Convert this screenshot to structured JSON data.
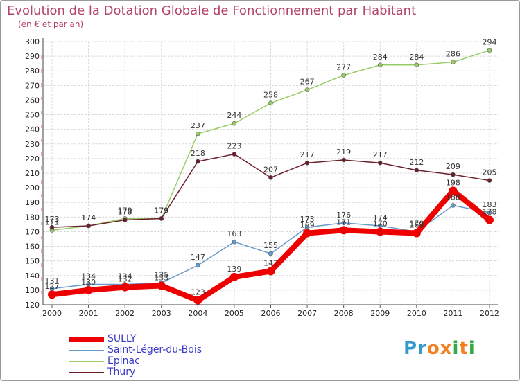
{
  "chart_data": {
    "type": "line",
    "title": "Evolution de la Dotation Globale de Fonctionnement par Habitant",
    "subtitle": "(en € et par an)",
    "xlabel": "",
    "ylabel": "",
    "categories": [
      "2000",
      "2001",
      "2002",
      "2003",
      "2004",
      "2005",
      "2006",
      "2007",
      "2008",
      "2009",
      "2010",
      "2011",
      "2012"
    ],
    "ylim": [
      120,
      300
    ],
    "yticks": [
      120,
      130,
      140,
      150,
      160,
      170,
      180,
      190,
      200,
      210,
      220,
      230,
      240,
      250,
      260,
      270,
      280,
      290,
      300
    ],
    "grid": true,
    "legend_position": "bottom-left",
    "series": [
      {
        "name": "SULLY",
        "color": "#ee0000",
        "values": [
          127,
          130,
          132,
          133,
          123,
          139,
          143,
          169,
          171,
          170,
          169,
          198,
          178
        ]
      },
      {
        "name": "Saint-Léger-du-Bois",
        "color": "#6699cc",
        "values": [
          131,
          134,
          134,
          135,
          147,
          163,
          155,
          173,
          176,
          174,
          170,
          188,
          183
        ]
      },
      {
        "name": "Epinac",
        "color": "#99cc66",
        "values": [
          171,
          174,
          179,
          179,
          237,
          244,
          258,
          267,
          277,
          284,
          284,
          286,
          294
        ]
      },
      {
        "name": "Thury",
        "color": "#6b1e2a",
        "values": [
          173,
          174,
          178,
          179,
          218,
          223,
          207,
          217,
          219,
          217,
          212,
          209,
          205
        ]
      }
    ]
  },
  "logo": {
    "text": "Proxiti"
  }
}
